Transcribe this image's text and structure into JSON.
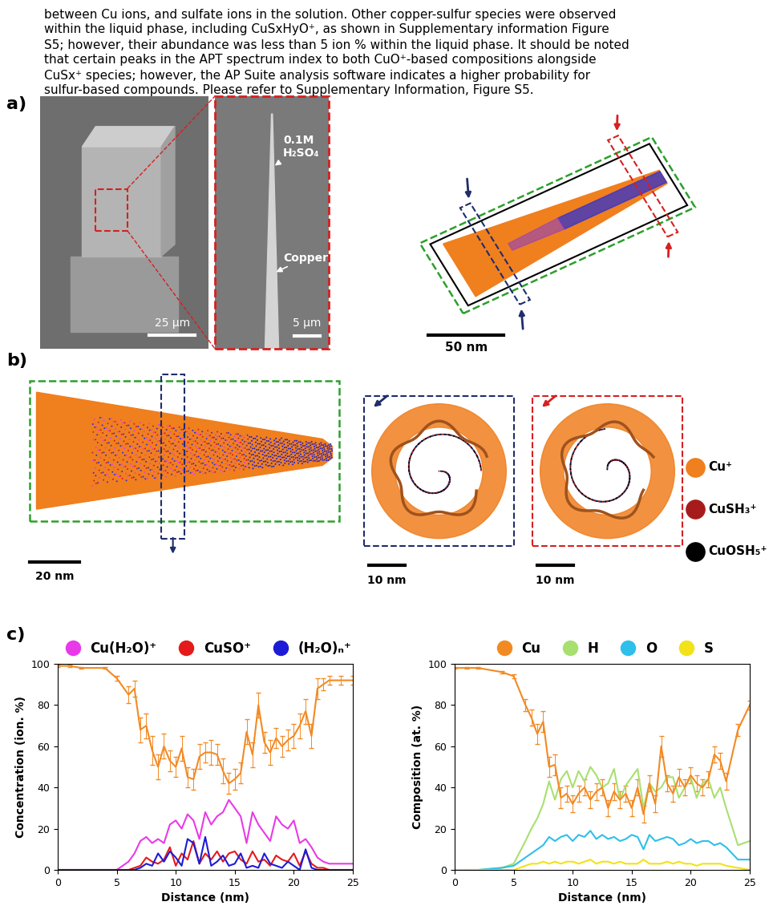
{
  "paragraph": [
    "between Cu ions, and sulfate ions in the solution. Other copper-sulfur species were observed",
    "within the liquid phase, including CuSxHyO⁺, as shown in Supplementary information Figure",
    "S5; however, their abundance was less than 5 ion % within the liquid phase. It should be noted",
    "that certain peaks in the APT spectrum index to both CuO⁺-based compositions alongside",
    "CuSx⁺ species; however, the AP Suite analysis software indicates a higher probability for",
    "sulfur-based compounds. Please refer to Supplementary Information, Figure S5."
  ],
  "panel_labels": [
    "a)",
    "b)",
    "c)"
  ],
  "panel_a": {
    "sem_scale": "25 µm",
    "zoom_scale": "5 µm",
    "zoom_labels": [
      "0.1M\nH₂SO₄",
      "Copper"
    ],
    "reconstruction_scale": "50 nm"
  },
  "panel_b": {
    "side_scale": "20 nm",
    "slice_scales": [
      "10 nm",
      "10 nm"
    ],
    "legend": [
      {
        "name": "Cu⁺",
        "color": "#f07f1e"
      },
      {
        "name": "CuSH₃⁺",
        "color": "#a61c1c"
      },
      {
        "name": "CuOSH₅⁺",
        "color": "#000000"
      }
    ]
  },
  "chart_data": [
    {
      "type": "line",
      "xlabel": "Distance (nm)",
      "ylabel": "Concentration (ion. %)",
      "xlim": [
        0,
        25
      ],
      "ylim": [
        0,
        100
      ],
      "xticks": [
        0,
        5,
        10,
        15,
        20,
        25
      ],
      "yticks": [
        0,
        20,
        40,
        60,
        80,
        100
      ],
      "legend": "above",
      "x": [
        0,
        1,
        2,
        4,
        5,
        6,
        6.5,
        7,
        7.5,
        8,
        8.5,
        9,
        9.5,
        10,
        10.5,
        11,
        11.5,
        12,
        12.5,
        13,
        13.5,
        14,
        14.5,
        15,
        15.5,
        16,
        16.5,
        17,
        17.5,
        18,
        18.5,
        19,
        19.5,
        20,
        20.5,
        21,
        21.5,
        22,
        22.5,
        23,
        24,
        25
      ],
      "series": [
        {
          "color": "#f28a24",
          "values": [
            99,
            99,
            98,
            98,
            93,
            85,
            88,
            68,
            70,
            58,
            50,
            60,
            53,
            50,
            59,
            45,
            44,
            55,
            57,
            57,
            56,
            48,
            42,
            44,
            47,
            67,
            56,
            80,
            62,
            57,
            64,
            60,
            63,
            65,
            70,
            77,
            65,
            88,
            90,
            92,
            92,
            92
          ],
          "errors": [
            0.5,
            0.5,
            0.5,
            0.5,
            1,
            4,
            4,
            6,
            6,
            7,
            6,
            6,
            5,
            5,
            6,
            5,
            5,
            6,
            5,
            6,
            5,
            6,
            5,
            5,
            5,
            6,
            6,
            6,
            5,
            6,
            5,
            5,
            5,
            6,
            6,
            6,
            6,
            5,
            3,
            2,
            2,
            2
          ]
        },
        {
          "name": "Cu(H₂O)⁺",
          "color": "#e83ae8",
          "values": [
            0,
            0,
            0,
            0,
            0,
            4,
            8,
            14,
            16,
            13,
            15,
            13,
            22,
            24,
            20,
            27,
            24,
            15,
            28,
            22,
            26,
            28,
            34,
            30,
            26,
            13,
            28,
            22,
            18,
            14,
            26,
            22,
            20,
            24,
            13,
            15,
            11,
            6,
            4,
            3,
            3,
            3
          ]
        },
        {
          "name": "CuSO⁺",
          "color": "#e41a1c",
          "values": [
            0,
            0,
            0,
            0,
            0,
            0,
            1,
            2,
            6,
            4,
            3,
            5,
            11,
            2,
            8,
            5,
            14,
            3,
            8,
            5,
            9,
            4,
            8,
            9,
            5,
            3,
            9,
            4,
            5,
            2,
            7,
            5,
            4,
            8,
            2,
            9,
            3,
            1,
            1,
            0,
            0,
            0
          ]
        },
        {
          "name": "(H₂O)ₙ⁺",
          "color": "#1c1cd6",
          "values": [
            0,
            0,
            0,
            0,
            0,
            0,
            0,
            1,
            3,
            2,
            8,
            4,
            9,
            6,
            2,
            15,
            13,
            3,
            16,
            2,
            4,
            7,
            2,
            3,
            8,
            1,
            2,
            1,
            8,
            3,
            2,
            1,
            4,
            2,
            0,
            10,
            1,
            0,
            0,
            0,
            0,
            0
          ]
        }
      ]
    },
    {
      "type": "line",
      "xlabel": "Distance (nm)",
      "ylabel": "Composition (at. %)",
      "xlim": [
        0,
        25
      ],
      "ylim": [
        0,
        100
      ],
      "xticks": [
        0,
        5,
        10,
        15,
        20,
        25
      ],
      "yticks": [
        0,
        20,
        40,
        60,
        80,
        100
      ],
      "legend": "above",
      "x": [
        0,
        1,
        2,
        4,
        5,
        6,
        6.5,
        7,
        7.5,
        8,
        8.5,
        9,
        9.5,
        10,
        10.5,
        11,
        11.5,
        12,
        12.5,
        13,
        13.5,
        14,
        14.5,
        15,
        15.5,
        16,
        16.5,
        17,
        17.5,
        18,
        18.5,
        19,
        19.5,
        20,
        20.5,
        21,
        21.5,
        22,
        22.5,
        23,
        24,
        25
      ],
      "series": [
        {
          "name": "Cu",
          "color": "#f28a24",
          "values": [
            98,
            98,
            98,
            96,
            94,
            80,
            74,
            66,
            72,
            50,
            51,
            35,
            37,
            32,
            37,
            40,
            34,
            38,
            40,
            30,
            38,
            34,
            37,
            30,
            40,
            27,
            42,
            32,
            60,
            42,
            37,
            45,
            40,
            46,
            42,
            40,
            44,
            56,
            53,
            43,
            68,
            80
          ],
          "errors": [
            0.5,
            0.5,
            0.5,
            0.5,
            1,
            3,
            4,
            5,
            5,
            5,
            5,
            5,
            4,
            4,
            4,
            4,
            4,
            4,
            4,
            4,
            4,
            4,
            4,
            4,
            4,
            4,
            4,
            4,
            5,
            4,
            4,
            4,
            4,
            4,
            4,
            4,
            4,
            4,
            4,
            4,
            3,
            2
          ]
        },
        {
          "name": "H",
          "color": "#a8e070",
          "values": [
            0,
            0,
            0,
            1,
            3,
            14,
            20,
            25,
            32,
            43,
            34,
            44,
            48,
            40,
            48,
            43,
            50,
            46,
            40,
            42,
            49,
            34,
            41,
            45,
            49,
            30,
            42,
            38,
            40,
            45,
            45,
            35,
            40,
            45,
            35,
            42,
            44,
            35,
            40,
            30,
            12,
            14
          ]
        },
        {
          "name": "O",
          "color": "#2ec0ea",
          "values": [
            0,
            0,
            0,
            1,
            2,
            6,
            8,
            10,
            12,
            16,
            14,
            16,
            17,
            14,
            17,
            16,
            19,
            15,
            17,
            15,
            16,
            14,
            15,
            17,
            16,
            10,
            17,
            14,
            15,
            16,
            15,
            12,
            13,
            15,
            13,
            14,
            14,
            12,
            13,
            11,
            5,
            5
          ]
        },
        {
          "name": "S",
          "color": "#f2e21a",
          "values": [
            0,
            0,
            0,
            0,
            0,
            2,
            3,
            3,
            4,
            3,
            4,
            3,
            4,
            4,
            3,
            4,
            5,
            3,
            4,
            4,
            3,
            4,
            3,
            3,
            3,
            5,
            3,
            3,
            3,
            4,
            3,
            4,
            3,
            3,
            2,
            3,
            3,
            3,
            3,
            2,
            1,
            0
          ]
        }
      ]
    }
  ]
}
